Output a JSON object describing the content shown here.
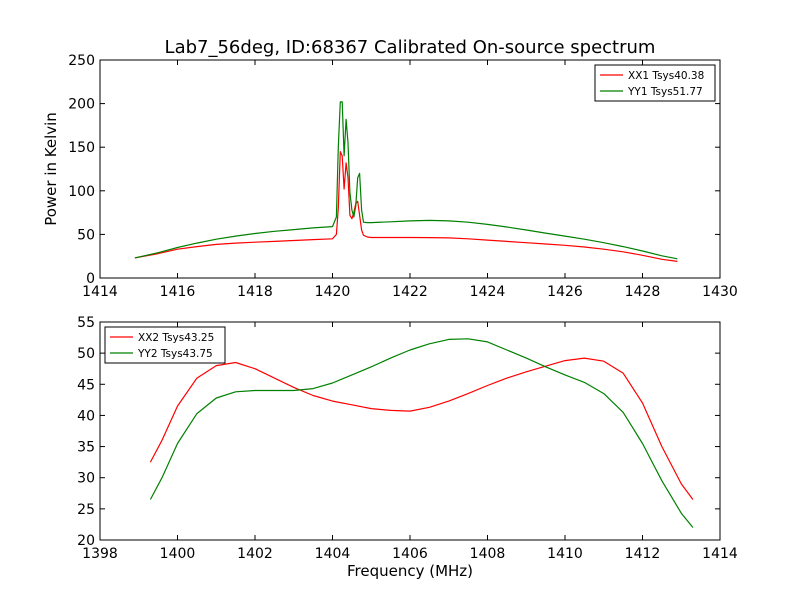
{
  "figure": {
    "title": "Lab7_56deg, ID:68367 Calibrated On-source spectrum"
  },
  "chart_data": [
    {
      "type": "line",
      "title": "Lab7_56deg, ID:68367 Calibrated On-source spectrum",
      "xlabel": "",
      "ylabel": "Power in Kelvin",
      "xlim": [
        1414,
        1430
      ],
      "ylim": [
        0,
        250
      ],
      "xticks": [
        1414,
        1416,
        1418,
        1420,
        1422,
        1424,
        1426,
        1428,
        1430
      ],
      "yticks": [
        0,
        50,
        100,
        150,
        200,
        250
      ],
      "grid": false,
      "legend_position": "top-right",
      "series": [
        {
          "name": "XX1 Tsys40.38",
          "color": "#ff0000",
          "x": [
            1414.9,
            1415.5,
            1416.0,
            1416.5,
            1417.0,
            1417.5,
            1418.0,
            1418.5,
            1419.0,
            1419.5,
            1420.0,
            1420.1,
            1420.15,
            1420.2,
            1420.25,
            1420.3,
            1420.35,
            1420.4,
            1420.45,
            1420.5,
            1420.55,
            1420.6,
            1420.65,
            1420.7,
            1420.75,
            1420.8,
            1420.9,
            1421.0,
            1421.5,
            1422.0,
            1422.5,
            1423.0,
            1423.5,
            1424.0,
            1424.5,
            1425.0,
            1425.5,
            1426.0,
            1426.5,
            1427.0,
            1427.5,
            1428.0,
            1428.5,
            1428.9
          ],
          "y": [
            23,
            28,
            33,
            36,
            38.5,
            40,
            41,
            42,
            43,
            44,
            45,
            50,
            80,
            145,
            140,
            102,
            132,
            115,
            72,
            68,
            75,
            85,
            88,
            72,
            55,
            49,
            47,
            46.5,
            46.5,
            46.5,
            46.3,
            46,
            45,
            43.5,
            42,
            40.5,
            39,
            37.5,
            35.5,
            33,
            30,
            26,
            21.5,
            19
          ]
        },
        {
          "name": "YY1 Tsys51.77",
          "color": "#008000",
          "x": [
            1414.9,
            1415.5,
            1416.0,
            1416.5,
            1417.0,
            1417.5,
            1418.0,
            1418.5,
            1419.0,
            1419.5,
            1420.0,
            1420.1,
            1420.15,
            1420.2,
            1420.25,
            1420.3,
            1420.35,
            1420.4,
            1420.45,
            1420.5,
            1420.55,
            1420.6,
            1420.65,
            1420.7,
            1420.75,
            1420.8,
            1420.9,
            1421.0,
            1421.5,
            1422.0,
            1422.5,
            1423.0,
            1423.5,
            1424.0,
            1424.5,
            1425.0,
            1425.5,
            1426.0,
            1426.5,
            1427.0,
            1427.5,
            1428.0,
            1428.5,
            1428.9
          ],
          "y": [
            23,
            29,
            35,
            40,
            44.5,
            48,
            51,
            53.5,
            55.5,
            57.5,
            59,
            70,
            150,
            202,
            202,
            140,
            182,
            155,
            98,
            78,
            70,
            82,
            115,
            120,
            78,
            64,
            63.5,
            63.5,
            64.5,
            65.5,
            66,
            65.5,
            64,
            61.5,
            58.5,
            55,
            51.5,
            48,
            44.5,
            40.5,
            36,
            31,
            25.5,
            22
          ]
        }
      ]
    },
    {
      "type": "line",
      "title": "",
      "xlabel": "Frequency (MHz)",
      "ylabel": "",
      "xlim": [
        1398,
        1414
      ],
      "ylim": [
        20,
        55
      ],
      "xticks": [
        1398,
        1400,
        1402,
        1404,
        1406,
        1408,
        1410,
        1412,
        1414
      ],
      "yticks": [
        20,
        25,
        30,
        35,
        40,
        45,
        50,
        55
      ],
      "grid": false,
      "legend_position": "top-left",
      "series": [
        {
          "name": "XX2 Tsys43.25",
          "color": "#ff0000",
          "x": [
            1399.3,
            1399.6,
            1400.0,
            1400.5,
            1401.0,
            1401.5,
            1402.0,
            1402.5,
            1403.0,
            1403.5,
            1404.0,
            1404.5,
            1405.0,
            1405.5,
            1406.0,
            1406.5,
            1407.0,
            1407.5,
            1408.0,
            1408.5,
            1409.0,
            1409.5,
            1410.0,
            1410.5,
            1411.0,
            1411.5,
            1412.0,
            1412.5,
            1413.0,
            1413.3
          ],
          "y": [
            32.5,
            36,
            41.5,
            46,
            48,
            48.5,
            47.5,
            46,
            44.5,
            43.2,
            42.3,
            41.7,
            41.1,
            40.8,
            40.7,
            41.3,
            42.3,
            43.5,
            44.8,
            46,
            47,
            47.9,
            48.8,
            49.2,
            48.7,
            46.8,
            42,
            35,
            29,
            26.5
          ]
        },
        {
          "name": "YY2 Tsys43.75",
          "color": "#008000",
          "x": [
            1399.3,
            1399.6,
            1400.0,
            1400.5,
            1401.0,
            1401.5,
            1402.0,
            1402.5,
            1403.0,
            1403.5,
            1404.0,
            1404.5,
            1405.0,
            1405.5,
            1406.0,
            1406.5,
            1407.0,
            1407.5,
            1408.0,
            1408.5,
            1409.0,
            1409.5,
            1410.0,
            1410.5,
            1411.0,
            1411.5,
            1412.0,
            1412.5,
            1413.0,
            1413.3
          ],
          "y": [
            26.5,
            30,
            35.5,
            40.3,
            42.8,
            43.8,
            44,
            44,
            44,
            44.3,
            45.2,
            46.5,
            47.8,
            49.2,
            50.5,
            51.5,
            52.2,
            52.3,
            51.8,
            50.5,
            49.2,
            47.8,
            46.5,
            45.3,
            43.5,
            40.5,
            35.5,
            29.5,
            24.3,
            22
          ]
        }
      ]
    }
  ]
}
